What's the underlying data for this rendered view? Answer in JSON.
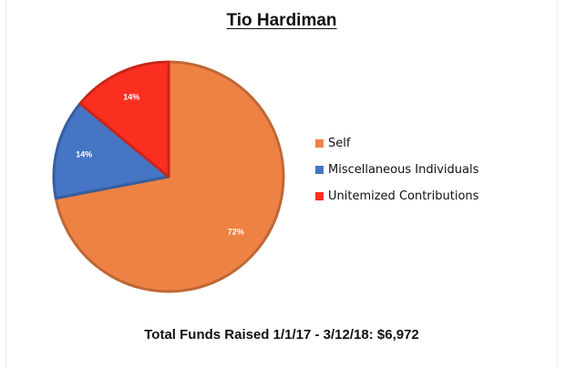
{
  "chart_data": {
    "type": "pie",
    "title": "Tio Hardiman",
    "slices": [
      {
        "label": "Self",
        "value": 72,
        "value_label": "72%",
        "color": "#ee8244"
      },
      {
        "label": "Miscellaneous Individuals",
        "value": 14,
        "value_label": "14%",
        "color": "#4575c4"
      },
      {
        "label": "Unitemized Contributions",
        "value": 14,
        "value_label": "14%",
        "color": "#fb2f20"
      }
    ],
    "start": "top",
    "direction": "clockwise",
    "legend_position": "right",
    "footer": "Total Funds Raised 1/1/17 - 3/12/18: $6,972"
  }
}
